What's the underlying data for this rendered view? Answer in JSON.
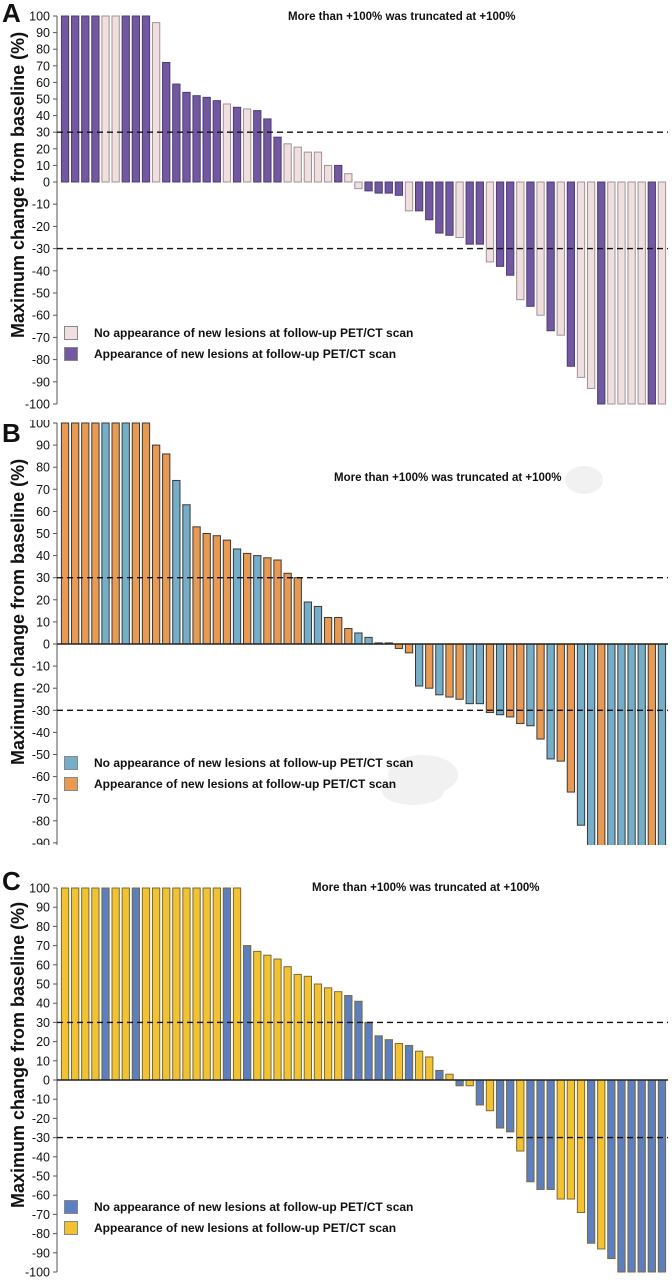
{
  "chart_data": [
    {
      "type": "bar",
      "panel": "A",
      "title": "",
      "annotation": "More than +100% was truncated at +100%",
      "xlabel": "",
      "ylabel": "Maximum change from baseline (%)",
      "ylim": [
        -100,
        100
      ],
      "yticks": [
        "100",
        "90",
        "80",
        "70",
        "60",
        "50",
        "40",
        "30",
        "20",
        "10",
        "0",
        "-10",
        "-20",
        "-30",
        "-40",
        "-50",
        "-60",
        "-70",
        "-80",
        "-90",
        "-100"
      ],
      "reference_lines": [
        30,
        -30
      ],
      "legend_position": "lower-left",
      "series": [
        {
          "key": "no",
          "name": "No appearance of new lesions at follow-up PET/CT scan",
          "color": "#efe0df"
        },
        {
          "key": "yes",
          "name": "Appearance of new lesions at follow-up PET/CT scan",
          "color": "#7158a0"
        }
      ],
      "values": [
        100,
        100,
        100,
        100,
        100,
        100,
        100,
        100,
        100,
        96,
        72,
        59,
        54,
        52,
        51,
        49,
        47,
        45,
        44,
        43,
        38,
        27,
        23,
        21,
        18,
        18,
        10,
        10,
        5,
        -3,
        -4,
        -5,
        -5,
        -6,
        -13,
        -13,
        -17,
        -23,
        -24,
        -25,
        -28,
        -28,
        -36,
        -38,
        -42,
        -53,
        -56,
        -60,
        -67,
        -69,
        -83,
        -88,
        -93,
        -100,
        -100,
        -100,
        -100,
        -100,
        -100,
        -100
      ],
      "groups": [
        "yes",
        "yes",
        "yes",
        "yes",
        "no",
        "no",
        "yes",
        "yes",
        "yes",
        "no",
        "yes",
        "yes",
        "yes",
        "yes",
        "yes",
        "yes",
        "no",
        "yes",
        "no",
        "yes",
        "yes",
        "yes",
        "no",
        "no",
        "no",
        "no",
        "no",
        "yes",
        "no",
        "no",
        "yes",
        "yes",
        "yes",
        "yes",
        "no",
        "yes",
        "yes",
        "yes",
        "yes",
        "no",
        "yes",
        "yes",
        "no",
        "yes",
        "yes",
        "no",
        "yes",
        "no",
        "yes",
        "no",
        "yes",
        "no",
        "no",
        "yes",
        "no",
        "no",
        "no",
        "no",
        "yes",
        "no"
      ]
    },
    {
      "type": "bar",
      "panel": "B",
      "title": "",
      "annotation": "More than +100% was truncated at +100%",
      "xlabel": "",
      "ylabel": "Maximum change from baseline (%)",
      "ylim": [
        -100,
        100
      ],
      "yticks": [
        "100",
        "90",
        "80",
        "70",
        "60",
        "50",
        "40",
        "30",
        "20",
        "10",
        "0",
        "-10",
        "-20",
        "-30",
        "-40",
        "-50",
        "-60",
        "-70",
        "-80",
        "-90",
        "-100"
      ],
      "reference_lines": [
        30,
        -30
      ],
      "legend_position": "lower-left",
      "series": [
        {
          "key": "no",
          "name": "No appearance of new lesions at follow-up PET/CT scan",
          "color": "#74aec8"
        },
        {
          "key": "yes",
          "name": "Appearance of new lesions at follow-up PET/CT scan",
          "color": "#e99a52"
        }
      ],
      "values": [
        100,
        100,
        100,
        100,
        100,
        100,
        100,
        100,
        100,
        90,
        86,
        74,
        63,
        53,
        50,
        49,
        47,
        43,
        41,
        40,
        39,
        38,
        32,
        30,
        19,
        17,
        12,
        12,
        7,
        5,
        3,
        0.5,
        0.5,
        -2,
        -4,
        -19,
        -20,
        -23,
        -24,
        -25,
        -27,
        -27,
        -31,
        -32,
        -33,
        -36,
        -37,
        -43,
        -52,
        -53,
        -67,
        -82,
        -93,
        -100,
        -100,
        -100,
        -100,
        -100,
        -100,
        -100
      ],
      "groups": [
        "yes",
        "yes",
        "yes",
        "yes",
        "no",
        "yes",
        "no",
        "yes",
        "yes",
        "yes",
        "yes",
        "no",
        "no",
        "yes",
        "yes",
        "yes",
        "yes",
        "no",
        "yes",
        "no",
        "yes",
        "yes",
        "yes",
        "yes",
        "no",
        "no",
        "yes",
        "yes",
        "yes",
        "no",
        "no",
        "yes",
        "yes",
        "yes",
        "yes",
        "no",
        "yes",
        "no",
        "yes",
        "yes",
        "no",
        "no",
        "yes",
        "no",
        "yes",
        "yes",
        "no",
        "yes",
        "no",
        "yes",
        "yes",
        "no",
        "no",
        "yes",
        "no",
        "no",
        "no",
        "no",
        "yes",
        "no"
      ]
    },
    {
      "type": "bar",
      "panel": "C",
      "title": "",
      "annotation": "More than +100% was truncated at +100%",
      "xlabel": "",
      "ylabel": "Maximum change from baseline (%)",
      "ylim": [
        -100,
        100
      ],
      "yticks": [
        "100",
        "90",
        "80",
        "70",
        "60",
        "50",
        "40",
        "30",
        "20",
        "10",
        "0",
        "-10",
        "-20",
        "-30",
        "-40",
        "-50",
        "-60",
        "-70",
        "-80",
        "-90",
        "-100"
      ],
      "reference_lines": [
        30,
        -30
      ],
      "legend_position": "lower-left",
      "series": [
        {
          "key": "no",
          "name": "No appearance of new lesions at follow-up PET/CT scan",
          "color": "#5b7fc0"
        },
        {
          "key": "yes",
          "name": "Appearance of new lesions at follow-up PET/CT scan",
          "color": "#f2c232"
        }
      ],
      "values": [
        100,
        100,
        100,
        100,
        100,
        100,
        100,
        100,
        100,
        100,
        100,
        100,
        100,
        100,
        100,
        100,
        100,
        100,
        70,
        67,
        65,
        63,
        59,
        55,
        54,
        50,
        48,
        46,
        44,
        41,
        30,
        23,
        21,
        19,
        18,
        15,
        12,
        5,
        3,
        -3,
        -3,
        -13,
        -16,
        -25,
        -27,
        -37,
        -53,
        -57,
        -57,
        -62,
        -62,
        -69,
        -85,
        -88,
        -93,
        -100,
        -100,
        -100,
        -100,
        -100
      ],
      "groups": [
        "yes",
        "yes",
        "yes",
        "yes",
        "no",
        "yes",
        "yes",
        "no",
        "yes",
        "yes",
        "yes",
        "yes",
        "yes",
        "yes",
        "yes",
        "yes",
        "no",
        "yes",
        "no",
        "yes",
        "yes",
        "yes",
        "yes",
        "yes",
        "yes",
        "yes",
        "yes",
        "yes",
        "no",
        "no",
        "no",
        "no",
        "no",
        "yes",
        "no",
        "yes",
        "yes",
        "no",
        "yes",
        "no",
        "yes",
        "no",
        "yes",
        "no",
        "no",
        "yes",
        "no",
        "no",
        "no",
        "yes",
        "yes",
        "yes",
        "no",
        "yes",
        "no",
        "no",
        "no",
        "no",
        "no",
        "no"
      ]
    }
  ]
}
